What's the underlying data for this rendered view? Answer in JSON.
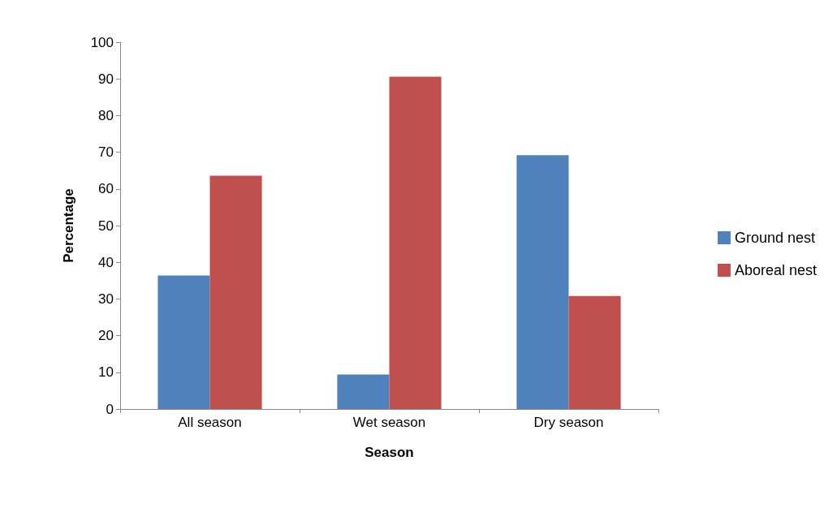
{
  "chart_data": {
    "type": "bar",
    "xlabel": "Season",
    "ylabel": "Percentage",
    "categories": [
      "All season",
      "Wet season",
      "Dry season"
    ],
    "series": [
      {
        "name": "Ground nest",
        "color": "#4f81bd",
        "values": [
          36.4,
          9.4,
          69.2
        ]
      },
      {
        "name": "Aboreal nest",
        "color": "#c0504d",
        "values": [
          63.6,
          90.6,
          30.8
        ]
      }
    ],
    "ylim": [
      0,
      100
    ],
    "yticks": [
      0,
      10,
      20,
      30,
      40,
      50,
      60,
      70,
      80,
      90,
      100
    ],
    "grid": false,
    "legend": "right"
  }
}
